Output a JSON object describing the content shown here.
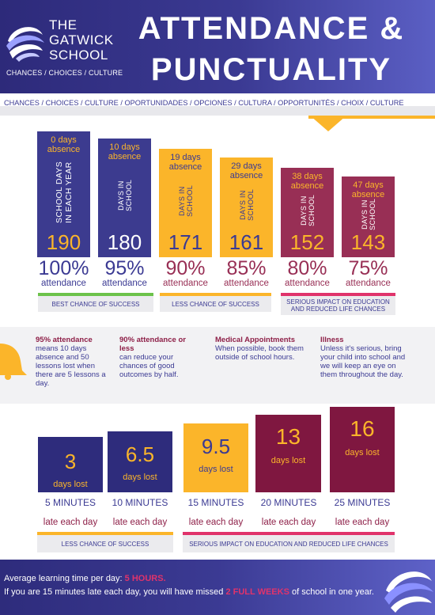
{
  "header": {
    "school_line1": "THE",
    "school_line2": "GATWICK",
    "school_line3": "SCHOOL",
    "tagline": "CHANCES / CHOICES / CULTURE",
    "title_line1": "ATTENDANCE &",
    "title_line2": "PUNCTUALITY"
  },
  "strip": {
    "text": "CHANCES / CHOICES / CULTURE / OPORTUNIDADES / OPCIONES / CULTURA / OPPORTUNITÉS / CHOIX / CULTURE"
  },
  "attendance": [
    {
      "absence": "0 days absence",
      "side": "SCHOOL DAYS\nIN EACH YEAR",
      "days": "190",
      "percent": "100%",
      "label": "attendance",
      "color": "#3c3b8f"
    },
    {
      "absence": "10 days absence",
      "side": "DAYS IN\nSCHOOL",
      "days": "180",
      "percent": "95%",
      "label": "attendance",
      "color": "#3c3b8f"
    },
    {
      "absence": "19 days absence",
      "side": "DAYS IN\nSCHOOL",
      "days": "171",
      "percent": "90%",
      "label": "attendance",
      "color": "#fbb52a"
    },
    {
      "absence": "29 days absence",
      "side": "DAYS IN\nSCHOOL",
      "days": "161",
      "percent": "85%",
      "label": "attendance",
      "color": "#fbb52a"
    },
    {
      "absence": "38 days absence",
      "side": "DAYS IN\nSCHOOL",
      "days": "152",
      "percent": "80%",
      "label": "attendance",
      "color": "#982f55"
    },
    {
      "absence": "47 days absence",
      "side": "DAYS IN\nSCHOOL",
      "days": "143",
      "percent": "75%",
      "label": "attendance",
      "color": "#982f55"
    }
  ],
  "bands_top": {
    "best": "BEST CHANCE OF SUCCESS",
    "less": "LESS CHANCE OF SUCCESS",
    "serious": "SERIOUS IMPACT ON EDUCATION AND REDUCED LIFE CHANCES"
  },
  "info": [
    {
      "head": "95% attendance",
      "body": "means 10 days absence and 50 lessons lost when there are 5 lessons a day."
    },
    {
      "head": "90% attendance or less",
      "body": "can reduce your chances of good outcomes by half."
    },
    {
      "head": "Medical Appointments",
      "body": "When possible, book them outside of school hours."
    },
    {
      "head": "Illness",
      "body": "Unless it's serious, bring your child into school and we will keep an eye on them throughout the day."
    }
  ],
  "lateness": [
    {
      "days": "3",
      "unit": "days lost",
      "minutes": "5 MINUTES",
      "late": "late each day",
      "color": "#2e2c7c"
    },
    {
      "days": "6.5",
      "unit": "days lost",
      "minutes": "10 MINUTES",
      "late": "late each day",
      "color": "#2e2c7c"
    },
    {
      "days": "9.5",
      "unit": "days lost",
      "minutes": "15 MINUTES",
      "late": "late each day",
      "color": "#fbb52a"
    },
    {
      "days": "13",
      "unit": "days lost",
      "minutes": "20 MINUTES",
      "late": "late each day",
      "color": "#7f1740"
    },
    {
      "days": "16",
      "unit": "days lost",
      "minutes": "25 MINUTES",
      "late": "late each day",
      "color": "#7f1740"
    }
  ],
  "bands_bottom": {
    "less": "LESS CHANCE OF SUCCESS",
    "serious": "SERIOUS IMPACT ON EDUCATION AND REDUCED LIFE CHANCES"
  },
  "footer": {
    "line1_prefix": "Average learning time per day: ",
    "line1_highlight": "5 HOURS.",
    "line2_prefix": "If you are 15 minutes late each day, you will have missed ",
    "line2_highlight": "2 FULL WEEKS",
    "line2_suffix": " of school in one year."
  },
  "colors": {
    "navy": "#3c3b8f",
    "yellow": "#fbb52a",
    "wine": "#982f55",
    "green": "#6cc24a",
    "red": "#e0336b"
  },
  "icons": [
    "logo-swirl-icon",
    "bell-icon",
    "chevron-down-icon"
  ]
}
